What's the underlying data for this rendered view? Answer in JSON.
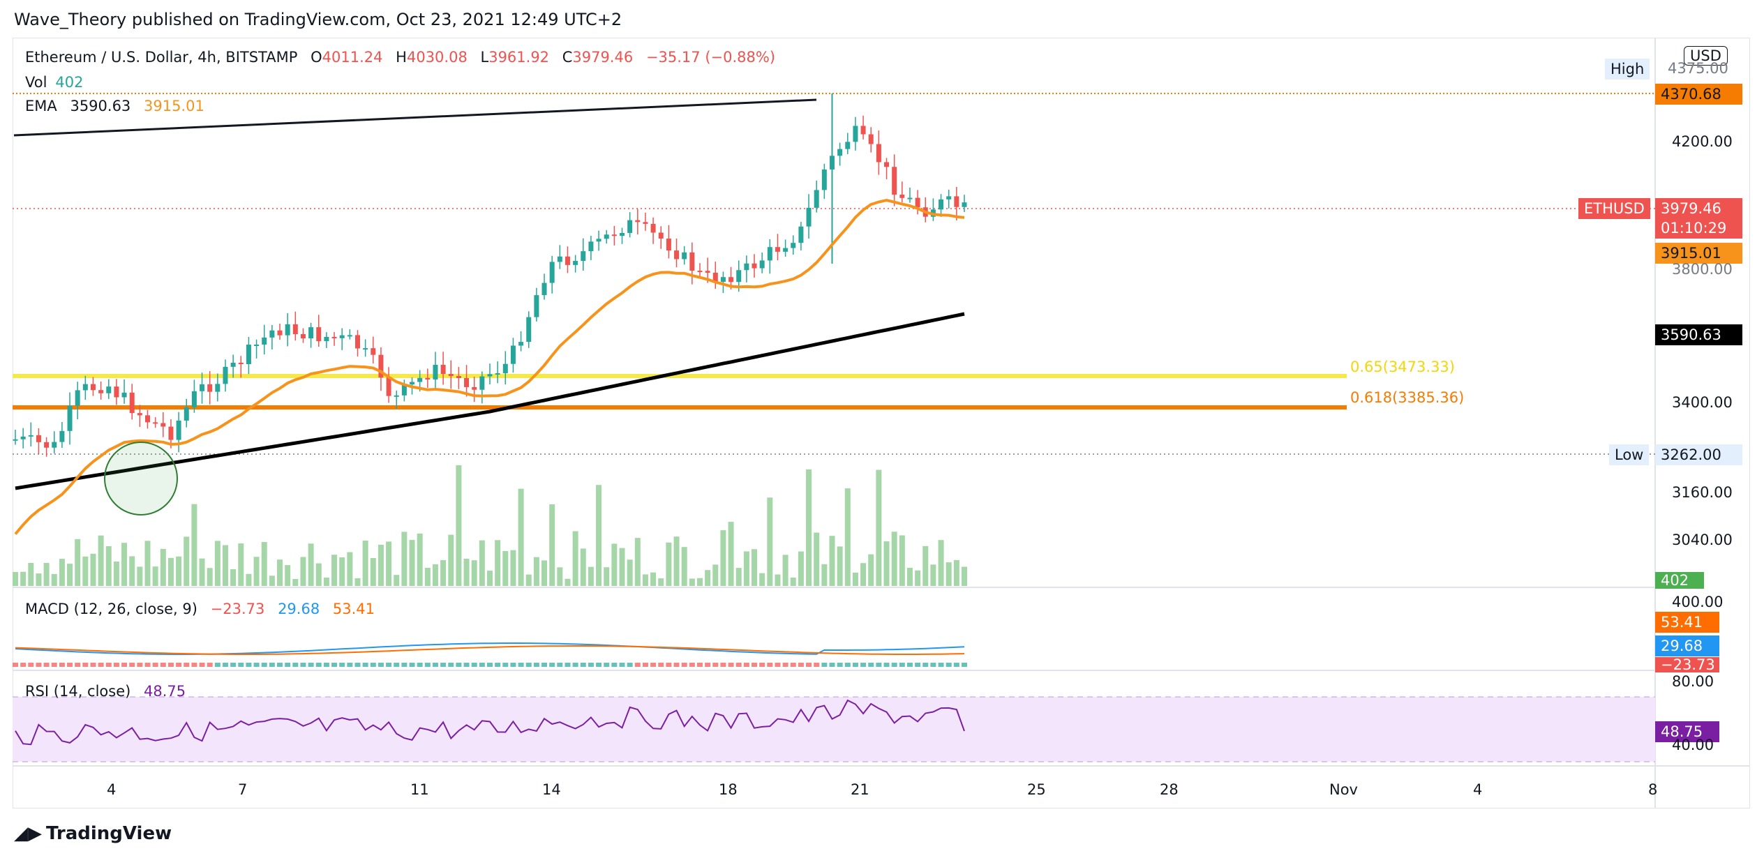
{
  "header": {
    "publisher_line": "Wave_Theory published on TradingView.com, Oct 23, 2021 12:49 UTC+2"
  },
  "legend": {
    "symbol": "Ethereum / U.S. Dollar, 4h, BITSTAMP",
    "open_label": "O",
    "open": "4011.24",
    "high_label": "H",
    "high": "4030.08",
    "low_label": "L",
    "low": "3961.92",
    "close_label": "C",
    "close": "3979.46",
    "change": "−35.17 (−0.88%)",
    "vol_label": "Vol",
    "vol": "402",
    "ema_label": "EMA",
    "ema_slow": "3590.63",
    "ema_fast": "3915.01",
    "macd_label": "MACD (12, 26, close, 9)",
    "macd_hist": "−23.73",
    "macd_line": "29.68",
    "macd_signal": "53.41",
    "rsi_label": "RSI (14, close)",
    "rsi": "48.75"
  },
  "price_axis": {
    "currency_button": "USD",
    "ticks": [
      "4200.00",
      "3800.00",
      "3400.00",
      "3160.00",
      "3040.00"
    ],
    "high_tag": "High",
    "high_value": "4370.68",
    "high_hidden": "4375.00",
    "low_tag": "Low",
    "low_value": "3262.00",
    "symbol_tag": "ETHUSD",
    "last_price": "3979.46",
    "countdown": "01:10:29",
    "ema_fast_tag": "3915.01",
    "ema_slow_tag": "3590.63",
    "vol_tag": "402"
  },
  "macd_axis": {
    "top_tick": "400.00",
    "signal_tag": "53.41",
    "macd_tag": "29.68",
    "hist_tag": "−23.73"
  },
  "rsi_axis": {
    "top_tick": "80.00",
    "bottom_tick": "40.00",
    "rsi_tag": "48.75"
  },
  "fib": {
    "level_065": "0.65(3473.33)",
    "level_0618": "0.618(3385.36)"
  },
  "time_axis": [
    "4",
    "7",
    "11",
    "14",
    "18",
    "21",
    "25",
    "28",
    "Nov",
    "4",
    "8"
  ],
  "footer": {
    "brand": "TradingView"
  },
  "colors": {
    "up": "#26a69a",
    "down": "#ef5350",
    "ema_fast": "#f7931a",
    "ema_slow": "#000000",
    "fib_065": "#f5e94a",
    "fib_0618": "#f57c00",
    "rsi": "#7b1fa2",
    "rsi_band": "#f3e5fc",
    "volume": "#a5d6a7",
    "macd": "#2196f3",
    "signal": "#ff6d00",
    "high_line": "#f57c00"
  }
}
